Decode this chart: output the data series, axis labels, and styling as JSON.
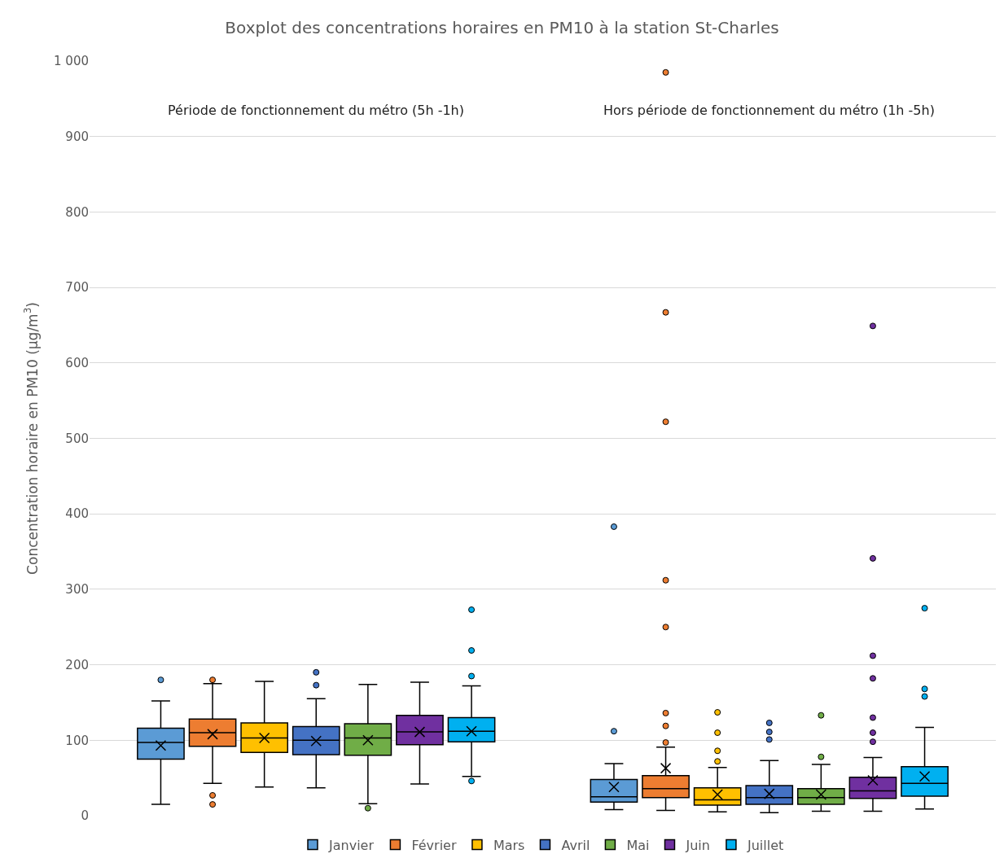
{
  "chart_data": {
    "type": "box",
    "title": "Boxplot des concentrations horaires en PM10 à la station St-Charles",
    "ylabel": "Concentration horaire en PM10 (µg/m$^{3}$)",
    "categories": [
      "Période de fonctionnement du métro (5h -1h)",
      "Hors période de fonctionnement du métro (1h -5h)"
    ],
    "ylim": [
      0,
      1000
    ],
    "yticks": [
      0,
      100,
      200,
      300,
      400,
      500,
      600,
      700,
      800,
      900,
      {
        "value": 1000,
        "label": "1 000"
      }
    ],
    "grid": "y",
    "legend": "bottom",
    "series": [
      {
        "name": "Janvier",
        "color": "#5b9bd5",
        "boxes": [
          {
            "low": 15,
            "q1": 75,
            "median": 97,
            "q3": 116,
            "high": 152,
            "mean": 93,
            "outliers": [
              180
            ]
          },
          {
            "low": 8,
            "q1": 18,
            "median": 25,
            "q3": 48,
            "high": 69,
            "mean": 38,
            "outliers": [
              112,
              383
            ]
          }
        ]
      },
      {
        "name": "Février",
        "color": "#ed7d31",
        "boxes": [
          {
            "low": 43,
            "q1": 92,
            "median": 110,
            "q3": 128,
            "high": 175,
            "mean": 108,
            "outliers": [
              180,
              27,
              15
            ]
          },
          {
            "low": 7,
            "q1": 24,
            "median": 36,
            "q3": 53,
            "high": 91,
            "mean": 63,
            "outliers": [
              97,
              119,
              136,
              250,
              312,
              522,
              667,
              985
            ]
          }
        ]
      },
      {
        "name": "Mars",
        "color": "#ffc000",
        "boxes": [
          {
            "low": 38,
            "q1": 84,
            "median": 103,
            "q3": 123,
            "high": 178,
            "mean": 103
          },
          {
            "low": 5,
            "q1": 14,
            "median": 21,
            "q3": 37,
            "high": 64,
            "mean": 28,
            "outliers": [
              72,
              86,
              110,
              137
            ]
          }
        ]
      },
      {
        "name": "Avril",
        "color": "#4472c4",
        "boxes": [
          {
            "low": 37,
            "q1": 81,
            "median": 100,
            "q3": 118,
            "high": 155,
            "mean": 99,
            "outliers": [
              173,
              190
            ]
          },
          {
            "low": 4,
            "q1": 15,
            "median": 24,
            "q3": 40,
            "high": 73,
            "mean": 29,
            "outliers": [
              101,
              111,
              123
            ]
          }
        ]
      },
      {
        "name": "Mai",
        "color": "#70ad47",
        "boxes": [
          {
            "low": 16,
            "q1": 80,
            "median": 103,
            "q3": 122,
            "high": 174,
            "mean": 100,
            "outliers": [
              10
            ]
          },
          {
            "low": 6,
            "q1": 15,
            "median": 24,
            "q3": 36,
            "high": 68,
            "mean": 28,
            "outliers": [
              78,
              133
            ]
          }
        ]
      },
      {
        "name": "Juin",
        "color": "#7030a0",
        "boxes": [
          {
            "low": 42,
            "q1": 94,
            "median": 111,
            "q3": 133,
            "high": 177,
            "mean": 111
          },
          {
            "low": 6,
            "q1": 23,
            "median": 33,
            "q3": 51,
            "high": 77,
            "mean": 47,
            "outliers": [
              98,
              110,
              130,
              182,
              212,
              341,
              649
            ]
          }
        ]
      },
      {
        "name": "Juillet",
        "color": "#00b0f0",
        "boxes": [
          {
            "low": 52,
            "q1": 98,
            "median": 112,
            "q3": 130,
            "high": 172,
            "mean": 112,
            "outliers": [
              46,
              185,
              219,
              273
            ]
          },
          {
            "low": 9,
            "q1": 26,
            "median": 43,
            "q3": 65,
            "high": 117,
            "mean": 52,
            "outliers": [
              158,
              168,
              275
            ]
          }
        ]
      }
    ]
  }
}
